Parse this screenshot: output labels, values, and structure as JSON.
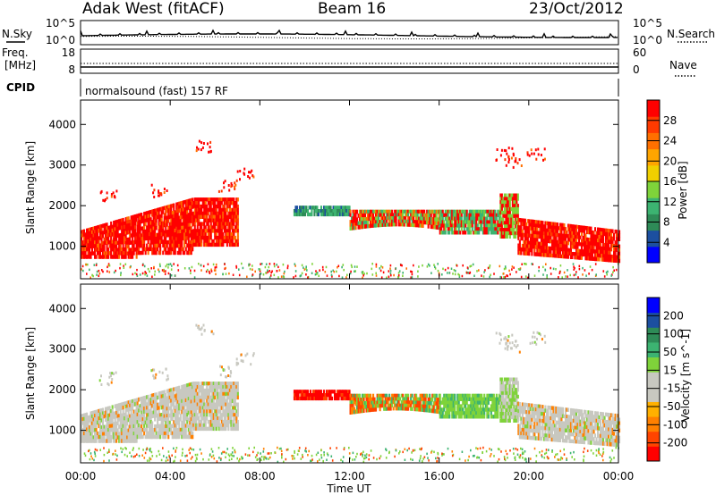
{
  "header": {
    "title": "Adak West (fitACF)",
    "beam": "Beam 16",
    "date": "23/Oct/2012"
  },
  "noise_panel": {
    "left_label": "N.Sky",
    "right_label": "N.Search",
    "left_ticks": [
      "10^5",
      "10^0"
    ],
    "right_ticks": [
      "10^5",
      "10^0"
    ]
  },
  "freq_panel": {
    "left_label_1": "Freq.",
    "left_label_2": "[MHz]",
    "right_label": "Nave",
    "left_ticks": [
      "18",
      "8"
    ],
    "right_ticks": [
      "60",
      "0"
    ],
    "cpid_label": "CPID",
    "cpid_value": "normalsound (fast) 157 RF"
  },
  "colors": {
    "power_scale": [
      "#0000ff",
      "#1c4fa0",
      "#2e8b57",
      "#3cb371",
      "#7fd33a",
      "#f0d000",
      "#ffa500",
      "#ff7000",
      "#ff3a00",
      "#ff0000"
    ],
    "velocity_scale": [
      "#ff0000",
      "#ff4400",
      "#ff8000",
      "#ffb000",
      "#c8c8c0",
      "#c8c8c0",
      "#7fd33a",
      "#3cb371",
      "#2e8b57",
      "#1c4fa0",
      "#0000ff"
    ]
  },
  "chart_data": [
    {
      "type": "heatmap",
      "name": "power",
      "ylabel": "Slant Range [km]",
      "yticks": [
        "1000",
        "2000",
        "3000",
        "4000"
      ],
      "ylim": [
        200,
        4600
      ],
      "xlim": [
        0,
        24
      ],
      "colorbar_label": "Power [dB]",
      "colorbar_ticks": [
        "4",
        "8",
        "12",
        "16",
        "20",
        "24",
        "28"
      ],
      "colorbar_range": [
        0,
        32
      ]
    },
    {
      "type": "heatmap",
      "name": "velocity",
      "ylabel": "Slant Range [km]",
      "yticks": [
        "1000",
        "2000",
        "3000",
        "4000"
      ],
      "ylim": [
        200,
        4600
      ],
      "xlim": [
        0,
        24
      ],
      "colorbar_label": "Velocity [m s^-1]",
      "colorbar_ticks": [
        "-200",
        "-100",
        "-50",
        "-15",
        "15",
        "50",
        "100",
        "200"
      ],
      "xlabel": "Time UT",
      "xticks": [
        "00:00",
        "04:00",
        "08:00",
        "12:00",
        "16:00",
        "20:00",
        "00:00"
      ]
    }
  ]
}
